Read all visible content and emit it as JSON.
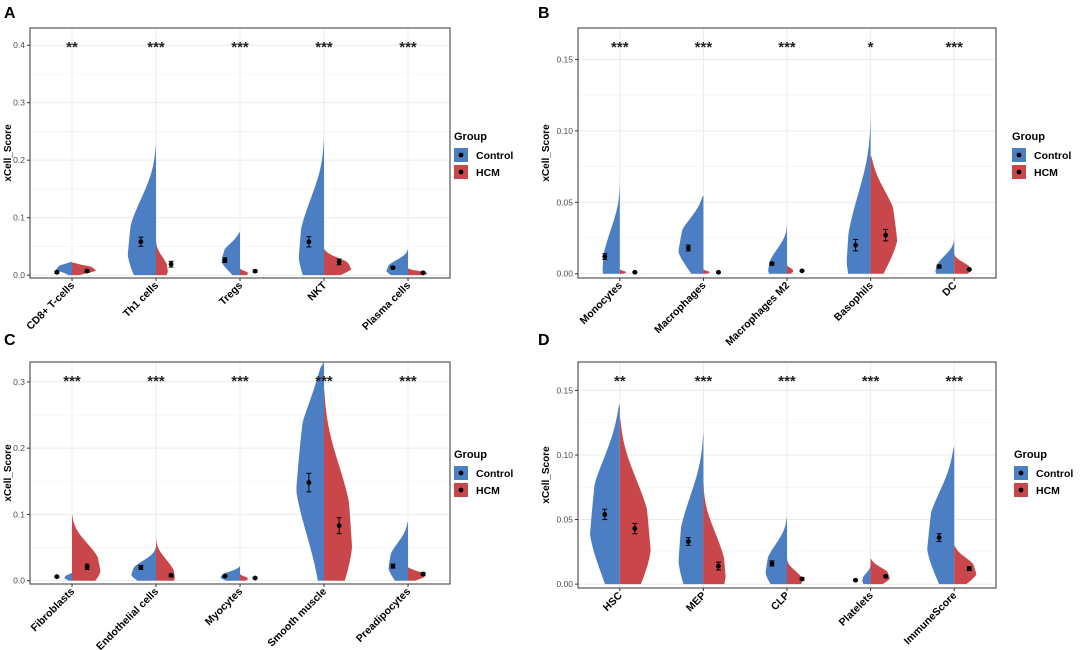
{
  "colors": {
    "control": "#4B7EC2",
    "hcm": "#C9474A",
    "grid": "#EBEBEB",
    "panel_border": "#333333",
    "text": "#222222"
  },
  "legend": {
    "title": "Group",
    "items": [
      {
        "label": "Control",
        "color": "#4B7EC2"
      },
      {
        "label": "HCM",
        "color": "#C9474A"
      }
    ]
  },
  "chart_data": [
    {
      "panel_label": "A",
      "type": "split-violin",
      "ylabel": "xCell_Score",
      "ylim": [
        -0.005,
        0.43
      ],
      "yticks": [
        0.0,
        0.1,
        0.2,
        0.3,
        0.4
      ],
      "ytick_labels": [
        "0.0",
        "0.1",
        "0.2",
        "0.3",
        "0.4"
      ],
      "categories": [
        "CD8+ T-cells",
        "Th1 cells",
        "Tregs",
        "NKT",
        "Plasma cells"
      ],
      "significance": [
        "**",
        "***",
        "***",
        "***",
        "***"
      ],
      "series": [
        {
          "name": "Control",
          "means": [
            0.005,
            0.058,
            0.026,
            0.058,
            0.013
          ],
          "errors": [
            0.002,
            0.008,
            0.004,
            0.009,
            0.002
          ],
          "max": [
            0.023,
            0.227,
            0.075,
            0.238,
            0.045
          ],
          "peak": [
            0.012,
            0.05,
            0.03,
            0.045,
            0.01
          ],
          "width": [
            0.55,
            0.85,
            0.6,
            0.75,
            0.65
          ]
        },
        {
          "name": "HCM",
          "means": [
            0.007,
            0.019,
            0.007,
            0.023,
            0.004
          ],
          "errors": [
            0.002,
            0.005,
            0.002,
            0.005,
            0.001
          ],
          "max": [
            0.022,
            0.06,
            0.012,
            0.045,
            0.012
          ],
          "peak": [
            0.01,
            0.01,
            0.003,
            0.014,
            0.003
          ],
          "width": [
            0.8,
            0.35,
            0.25,
            0.85,
            0.6
          ]
        }
      ]
    },
    {
      "panel_label": "B",
      "type": "split-violin",
      "ylabel": "xCell_Score",
      "ylim": [
        -0.003,
        0.172
      ],
      "yticks": [
        0.0,
        0.05,
        0.1,
        0.15
      ],
      "ytick_labels": [
        "0.00",
        "0.05",
        "0.10",
        "0.15"
      ],
      "categories": [
        "Monocytes",
        "Macrophages",
        "Macrophages M2",
        "Basophils",
        "DC"
      ],
      "significance": [
        "***",
        "***",
        "***",
        "*",
        "***"
      ],
      "series": [
        {
          "name": "Control",
          "means": [
            0.012,
            0.018,
            0.007,
            0.02,
            0.005
          ],
          "errors": [
            0.002,
            0.002,
            0.001,
            0.004,
            0.001
          ],
          "max": [
            0.065,
            0.055,
            0.035,
            0.11,
            0.025
          ],
          "peak": [
            0.006,
            0.02,
            0.004,
            0.014,
            0.003
          ],
          "width": [
            0.5,
            0.8,
            0.55,
            0.7,
            0.55
          ]
        },
        {
          "name": "HCM",
          "means": [
            0.001,
            0.001,
            0.002,
            0.027,
            0.003
          ],
          "errors": [
            0.0002,
            0.0002,
            0.0003,
            0.004,
            0.0005
          ],
          "max": [
            0.003,
            0.003,
            0.006,
            0.083,
            0.014
          ],
          "peak": [
            0.001,
            0.001,
            0.002,
            0.03,
            0.003
          ],
          "width": [
            0.2,
            0.2,
            0.2,
            0.85,
            0.5
          ]
        }
      ]
    },
    {
      "panel_label": "C",
      "type": "split-violin",
      "ylabel": "xCell_Score",
      "ylim": [
        -0.005,
        0.33
      ],
      "yticks": [
        0.0,
        0.1,
        0.2,
        0.3
      ],
      "ytick_labels": [
        "0.0",
        "0.1",
        "0.2",
        "0.3"
      ],
      "categories": [
        "Fibroblasts",
        "Endothelial cells",
        "Myocytes",
        "Smooth muscle",
        "Preadipocytes"
      ],
      "significance": [
        "***",
        "***",
        "***",
        "***",
        "***"
      ],
      "series": [
        {
          "name": "Control",
          "means": [
            0.006,
            0.02,
            0.007,
            0.148,
            0.022
          ],
          "errors": [
            0.001,
            0.003,
            0.001,
            0.014,
            0.003
          ],
          "max": [
            0.012,
            0.05,
            0.022,
            0.33,
            0.09
          ],
          "peak": [
            0.005,
            0.012,
            0.006,
            0.17,
            0.025
          ],
          "width": [
            0.25,
            0.75,
            0.6,
            0.95,
            0.6
          ]
        },
        {
          "name": "HCM",
          "means": [
            0.021,
            0.008,
            0.004,
            0.083,
            0.01
          ],
          "errors": [
            0.004,
            0.002,
            0.001,
            0.012,
            0.002
          ],
          "max": [
            0.1,
            0.065,
            0.01,
            0.29,
            0.02
          ],
          "peak": [
            0.02,
            0.008,
            0.003,
            0.07,
            0.008
          ],
          "width": [
            0.85,
            0.55,
            0.25,
            0.85,
            0.55
          ]
        }
      ]
    },
    {
      "panel_label": "D",
      "type": "split-violin",
      "ylabel": "xCell_Score",
      "ylim": [
        -0.003,
        0.172
      ],
      "yticks": [
        0.0,
        0.05,
        0.1,
        0.15
      ],
      "ytick_labels": [
        "0.00",
        "0.05",
        "0.10",
        "0.15"
      ],
      "categories": [
        "HSC",
        "MEP",
        "CLP",
        "Platelets",
        "ImmuneScore"
      ],
      "significance": [
        "**",
        "***",
        "***",
        "***",
        "***"
      ],
      "series": [
        {
          "name": "Control",
          "means": [
            0.054,
            0.033,
            0.016,
            0.003,
            0.036
          ],
          "errors": [
            0.004,
            0.003,
            0.002,
            0.0005,
            0.003
          ],
          "max": [
            0.14,
            0.118,
            0.052,
            0.015,
            0.107
          ],
          "peak": [
            0.05,
            0.025,
            0.012,
            0.003,
            0.035
          ],
          "width": [
            0.95,
            0.75,
            0.65,
            0.25,
            0.85
          ]
        },
        {
          "name": "HCM",
          "means": [
            0.043,
            0.014,
            0.004,
            0.006,
            0.012
          ],
          "errors": [
            0.004,
            0.003,
            0.001,
            0.001,
            0.0015
          ],
          "max": [
            0.13,
            0.08,
            0.02,
            0.02,
            0.03
          ],
          "peak": [
            0.035,
            0.01,
            0.003,
            0.006,
            0.01
          ],
          "width": [
            0.95,
            0.65,
            0.45,
            0.6,
            0.7
          ]
        }
      ]
    }
  ]
}
